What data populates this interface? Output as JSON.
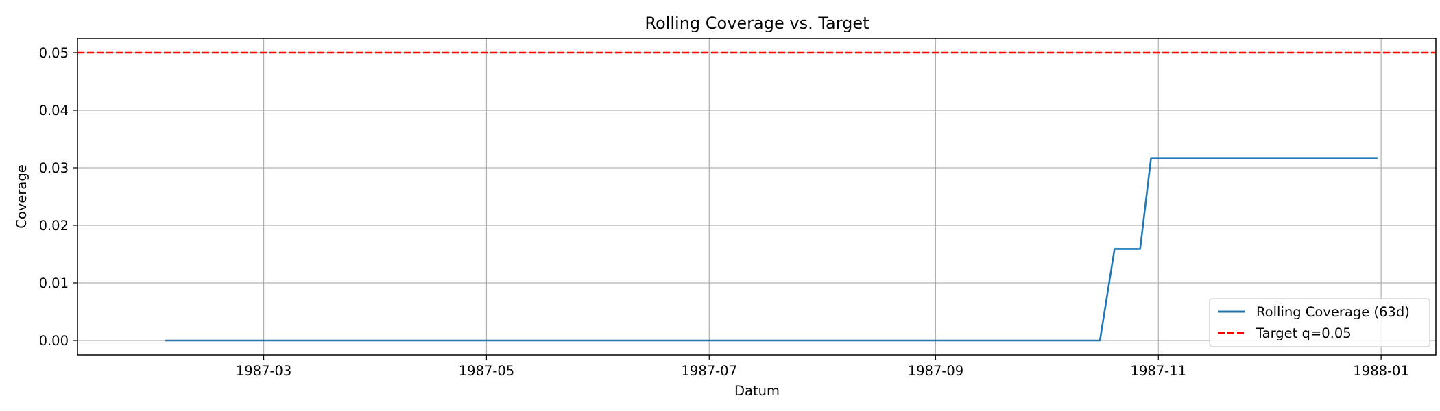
{
  "chart_data": {
    "type": "line",
    "title": "Rolling Coverage vs. Target",
    "xlabel": "Datum",
    "ylabel": "Coverage",
    "xlim": [
      "1987-01-09",
      "1988-01-16"
    ],
    "ylim": [
      -0.0025,
      0.0525
    ],
    "grid": true,
    "legend_position": "lower-right",
    "x_ticks": [
      "1987-03",
      "1987-05",
      "1987-07",
      "1987-09",
      "1987-11",
      "1988-01"
    ],
    "y_ticks": [
      "0.00",
      "0.01",
      "0.02",
      "0.03",
      "0.04",
      "0.05"
    ],
    "series": [
      {
        "name": "Rolling Coverage (63d)",
        "color": "#1f77b4",
        "style": "solid",
        "x": [
          "1987-02-02",
          "1987-10-16",
          "1987-10-20",
          "1987-10-27",
          "1987-10-30",
          "1987-12-31"
        ],
        "y": [
          0.0,
          0.0,
          0.0159,
          0.0159,
          0.0317,
          0.0317
        ]
      }
    ],
    "reference_lines": [
      {
        "name": "Target q=0.05",
        "y": 0.05,
        "color": "#ff0000",
        "style": "dashed"
      }
    ]
  }
}
